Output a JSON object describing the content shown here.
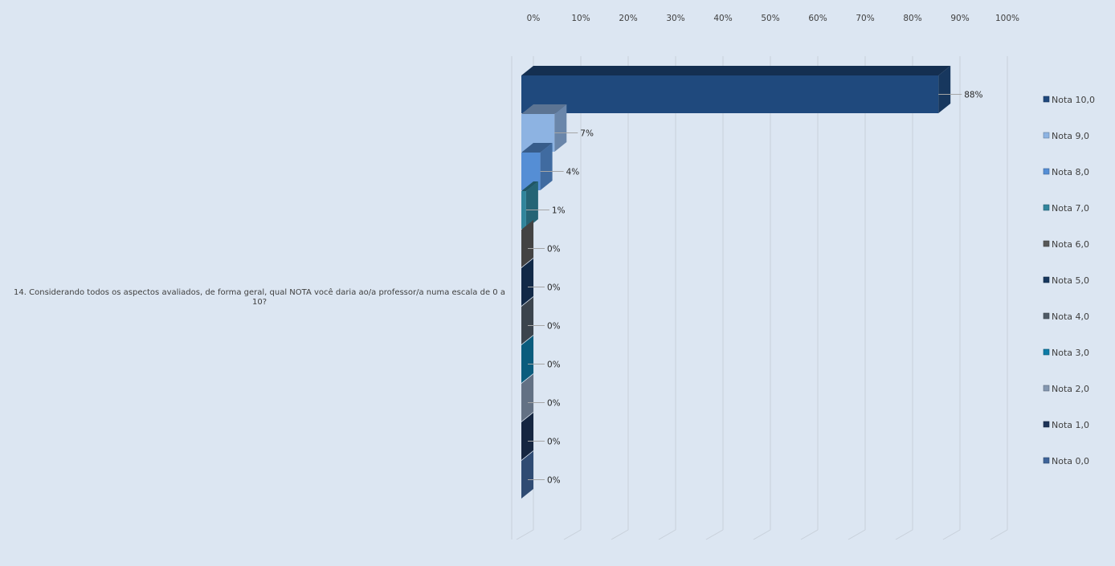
{
  "chart_data": {
    "type": "bar",
    "orientation": "horizontal",
    "style": "3d-clustered",
    "category_label": "14. Considerando todos os aspectos avaliados, de forma geral, qual NOTA você daria ao/a professor/a numa escala de 0 a 10?",
    "category_label_lines": [
      "14. Considerando todos os aspectos avaliados, de forma geral, qual NOTA você daria ao/a professor/a numa escala de 0 a",
      "10?"
    ],
    "x_ticks": [
      "0%",
      "10%",
      "20%",
      "30%",
      "40%",
      "50%",
      "60%",
      "70%",
      "80%",
      "90%",
      "100%"
    ],
    "xlim": [
      0,
      100
    ],
    "x_axis_position": "top",
    "grid": true,
    "legend_position": "right",
    "series": [
      {
        "name": "Nota 10,0",
        "value": 88,
        "label": "88%",
        "color": "#1f497d"
      },
      {
        "name": "Nota 9,0",
        "value": 7,
        "label": "7%",
        "color": "#8db3e2"
      },
      {
        "name": "Nota 8,0",
        "value": 4,
        "label": "4%",
        "color": "#558ed5"
      },
      {
        "name": "Nota 7,0",
        "value": 1,
        "label": "1%",
        "color": "#31859c"
      },
      {
        "name": "Nota 6,0",
        "value": 0,
        "label": "0%",
        "color": "#595959"
      },
      {
        "name": "Nota 5,0",
        "value": 0,
        "label": "0%",
        "color": "#17375e"
      },
      {
        "name": "Nota 4,0",
        "value": 0,
        "label": "0%",
        "color": "#4f5b66"
      },
      {
        "name": "Nota 3,0",
        "value": 0,
        "label": "0%",
        "color": "#0e7ba6"
      },
      {
        "name": "Nota 2,0",
        "value": 0,
        "label": "0%",
        "color": "#8497b0"
      },
      {
        "name": "Nota 1,0",
        "value": 0,
        "label": "0%",
        "color": "#1c3357"
      },
      {
        "name": "Nota 0,0",
        "value": 0,
        "label": "0%",
        "color": "#3e6499"
      }
    ]
  }
}
